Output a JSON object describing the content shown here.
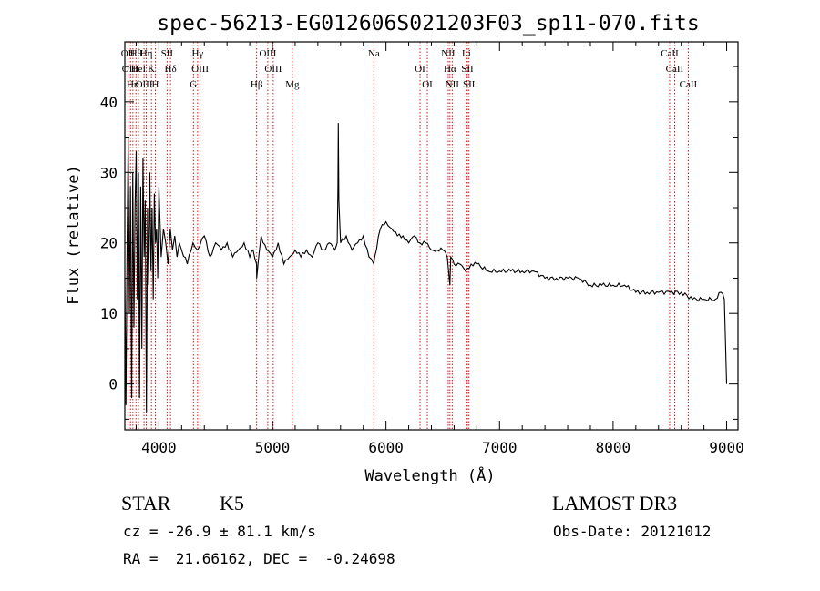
{
  "chart_data": {
    "type": "line",
    "title": "spec-56213-EG012606S021203F03_sp11-070.fits",
    "xlabel": "Wavelength (Å)",
    "ylabel": "Flux (relative)",
    "xlim": [
      3700,
      9100
    ],
    "ylim": [
      -6.5,
      48.5
    ],
    "xticks": [
      4000,
      5000,
      6000,
      7000,
      8000,
      9000
    ],
    "yticks": [
      0,
      10,
      20,
      30,
      40
    ],
    "grid": false,
    "line_color": "#000000",
    "marker_color": "#cc0000",
    "series": [
      {
        "name": "flux",
        "x": [
          3700,
          3710,
          3720,
          3730,
          3740,
          3750,
          3760,
          3770,
          3780,
          3790,
          3800,
          3810,
          3820,
          3830,
          3840,
          3850,
          3860,
          3870,
          3880,
          3890,
          3900,
          3910,
          3920,
          3930,
          3940,
          3950,
          3960,
          3970,
          3980,
          3990,
          4000,
          4020,
          4040,
          4060,
          4080,
          4100,
          4120,
          4140,
          4160,
          4180,
          4200,
          4250,
          4300,
          4340,
          4400,
          4450,
          4500,
          4550,
          4600,
          4650,
          4700,
          4750,
          4800,
          4830,
          4860,
          4861,
          4900,
          4950,
          5000,
          5050,
          5100,
          5150,
          5200,
          5250,
          5300,
          5350,
          5400,
          5450,
          5500,
          5550,
          5570,
          5577,
          5580,
          5585,
          5600,
          5650,
          5700,
          5750,
          5800,
          5850,
          5893,
          5900,
          5950,
          6000,
          6050,
          6100,
          6150,
          6200,
          6250,
          6300,
          6350,
          6400,
          6450,
          6500,
          6540,
          6563,
          6570,
          6600,
          6650,
          6700,
          6750,
          6800,
          6900,
          7000,
          7100,
          7200,
          7300,
          7400,
          7500,
          7600,
          7700,
          7800,
          7900,
          8000,
          8100,
          8200,
          8300,
          8400,
          8500,
          8600,
          8700,
          8800,
          8900,
          8950,
          8980,
          9000
        ],
        "y": [
          15,
          -3,
          20,
          35,
          10,
          28,
          -2,
          30,
          8,
          25,
          33,
          12,
          30,
          -2,
          28,
          5,
          32,
          18,
          26,
          -4,
          25,
          14,
          30,
          16,
          25,
          12,
          27,
          20,
          22,
          15,
          28,
          18,
          22,
          20,
          17,
          22,
          19,
          21,
          18,
          20,
          19,
          17,
          20,
          19,
          21,
          18,
          20,
          19,
          20,
          18,
          19,
          20,
          18,
          19,
          17,
          15,
          21,
          19,
          18,
          20,
          17,
          18,
          19,
          18,
          19,
          18,
          20,
          19,
          20,
          19,
          20,
          28,
          37,
          26,
          20,
          21,
          19,
          20,
          21,
          18,
          17,
          18,
          22,
          23,
          22,
          21,
          21,
          20,
          21,
          20,
          20,
          19,
          19,
          19,
          18,
          14,
          18,
          17,
          17,
          16,
          17,
          17,
          16,
          16,
          16,
          16,
          16,
          15,
          15,
          15,
          15,
          14,
          14,
          14,
          14,
          13,
          13,
          13,
          13,
          13,
          12,
          12,
          12,
          13,
          12,
          0
        ]
      }
    ],
    "lines": [
      {
        "wave": 3727,
        "label": "OII"
      },
      {
        "wave": 3750,
        "label": "OIII"
      },
      {
        "wave": 3771,
        "label": "Hη"
      },
      {
        "wave": 3798,
        "label": "Hθ"
      },
      {
        "wave": 3820,
        "label": "HeI"
      },
      {
        "wave": 3869,
        "label": "OIII"
      },
      {
        "wave": 3889,
        "label": "Hη"
      },
      {
        "wave": 3934,
        "label": "K"
      },
      {
        "wave": 3969,
        "label": "H"
      },
      {
        "wave": 4072,
        "label": "SII"
      },
      {
        "wave": 4102,
        "label": "Hδ"
      },
      {
        "wave": 4304,
        "label": "G"
      },
      {
        "wave": 4341,
        "label": "Hγ"
      },
      {
        "wave": 4363,
        "label": "OIII"
      },
      {
        "wave": 4861,
        "label": "Hβ"
      },
      {
        "wave": 4959,
        "label": "OIII"
      },
      {
        "wave": 5007,
        "label": "OIII"
      },
      {
        "wave": 5175,
        "label": "Mg"
      },
      {
        "wave": 5893,
        "label": "Na"
      },
      {
        "wave": 6300,
        "label": "OI"
      },
      {
        "wave": 6364,
        "label": "OI"
      },
      {
        "wave": 6548,
        "label": "NII"
      },
      {
        "wave": 6563,
        "label": "Hα"
      },
      {
        "wave": 6583,
        "label": "NII"
      },
      {
        "wave": 6708,
        "label": "Li"
      },
      {
        "wave": 6717,
        "label": "SII"
      },
      {
        "wave": 6731,
        "label": "SII"
      },
      {
        "wave": 8498,
        "label": "CaII"
      },
      {
        "wave": 8542,
        "label": "CaII"
      },
      {
        "wave": 8662,
        "label": "CaII"
      }
    ]
  },
  "info": {
    "object_class": "STAR",
    "subclass": "K5",
    "survey": "LAMOST DR3",
    "cz": "cz = -26.9 ± 81.1 km/s",
    "obs_date": "Obs-Date: 20121012",
    "coords": "RA =  21.66162, DEC =  -0.24698"
  }
}
